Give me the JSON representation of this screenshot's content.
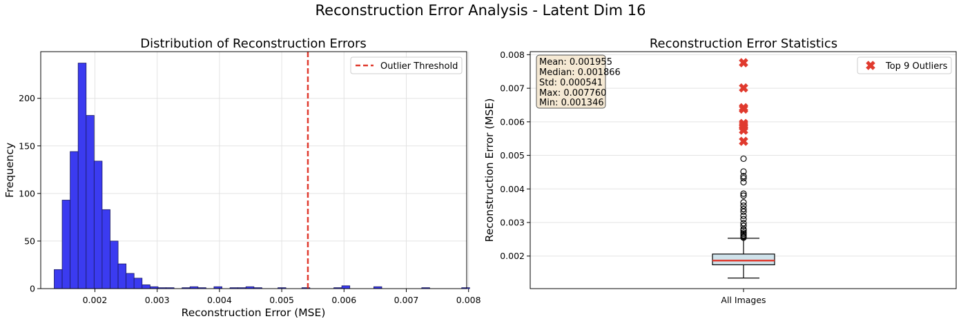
{
  "figure": {
    "suptitle": "Reconstruction Error Analysis - Latent Dim 16"
  },
  "colors": {
    "hist_fill": "#3b3bf0",
    "hist_edge": "#1a1a60",
    "threshold": "#e03a2e",
    "outlier_marker": "#e03a2e",
    "box_fill": "#cfe2ea",
    "median_line": "#e03a2e",
    "stats_box_fill": "#f5e9d4",
    "grid": "#e3e3e3"
  },
  "chart_data": [
    {
      "type": "bar",
      "subtype": "histogram",
      "title": "Distribution of Reconstruction Errors",
      "xlabel": "Reconstruction Error (MSE)",
      "ylabel": "Frequency",
      "xlim": [
        0.00113,
        0.00797
      ],
      "ylim": [
        0,
        249
      ],
      "xticks": [
        0.002,
        0.003,
        0.004,
        0.005,
        0.006,
        0.007,
        0.008
      ],
      "xtick_labels": [
        "0.002",
        "0.003",
        "0.004",
        "0.005",
        "0.006",
        "0.007",
        "0.008"
      ],
      "yticks": [
        0,
        50,
        100,
        150,
        200
      ],
      "ytick_labels": [
        "0",
        "50",
        "100",
        "150",
        "200"
      ],
      "grid": true,
      "bin_start": 0.001346,
      "bin_width": 0.0001283,
      "counts": [
        20,
        93,
        144,
        237,
        182,
        134,
        83,
        50,
        26,
        16,
        11,
        4,
        2,
        1,
        1,
        0,
        1,
        2,
        1,
        0,
        2,
        0,
        1,
        1,
        2,
        1,
        0,
        0,
        1,
        0,
        0,
        1,
        0,
        0,
        0,
        1,
        3,
        0,
        0,
        0,
        2,
        0,
        0,
        0,
        0,
        0,
        1,
        0,
        0,
        0,
        0,
        1
      ],
      "threshold": {
        "value": 0.00542,
        "label": "Outlier Threshold"
      },
      "legend_position": "upper right"
    },
    {
      "type": "boxplot",
      "title": "Reconstruction Error Statistics",
      "xlabel": "",
      "ylabel": "Reconstruction Error (MSE)",
      "category": "All Images",
      "ylim": [
        0.00103,
        0.00809
      ],
      "yticks": [
        0.002,
        0.003,
        0.004,
        0.005,
        0.006,
        0.007,
        0.008
      ],
      "ytick_labels": [
        "0.002",
        "0.003",
        "0.004",
        "0.005",
        "0.006",
        "0.007",
        "0.008"
      ],
      "grid": true,
      "box": {
        "min_whisker": 0.001346,
        "q1": 0.00174,
        "median": 0.001866,
        "q3": 0.00206,
        "max_whisker": 0.00253
      },
      "fliers": [
        0.00255,
        0.00258,
        0.00262,
        0.00266,
        0.0027,
        0.00276,
        0.0028,
        0.0029,
        0.00298,
        0.0031,
        0.0032,
        0.00332,
        0.0034,
        0.0035,
        0.0036,
        0.0038,
        0.00386,
        0.0042,
        0.00432,
        0.00438,
        0.00452,
        0.0049
      ],
      "outliers": {
        "label": "Top 9 Outliers",
        "values": [
          0.00776,
          0.00701,
          0.00642,
          0.00638,
          0.0059,
          0.00595,
          0.00585,
          0.00575,
          0.00542
        ]
      },
      "stats_text": [
        "Mean: 0.001955",
        "Median: 0.001866",
        "Std: 0.000541",
        "Max: 0.007760",
        "Min: 0.001346"
      ],
      "legend_position": "upper right"
    }
  ]
}
